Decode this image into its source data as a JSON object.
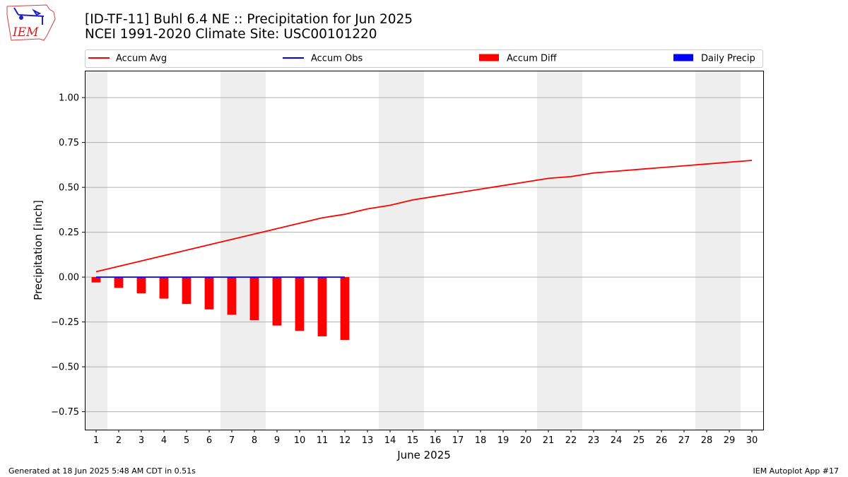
{
  "header": {
    "title_line1": "[ID-TF-11] Buhl 6.4 NE :: Precipitation for Jun 2025",
    "title_line2": "NCEI 1991-2020 Climate Site: USC00101220"
  },
  "logo": {
    "text": "IEM",
    "icon": "iem-state-map-logo"
  },
  "footer": {
    "generated": "Generated at 18 Jun 2025 5:48 AM CDT in 0.51s",
    "app": "IEM Autoplot App #17"
  },
  "colors": {
    "avg": "#ff0000",
    "obs": "#0000ff",
    "diff": "#ff0000",
    "daily": "#0000ff",
    "weekend_shade": "#eeeeee",
    "grid": "#b0b0b0"
  },
  "chart_data": {
    "type": "bar",
    "xlabel": "June 2025",
    "ylabel": "Precipitation [inch]",
    "xlim": [
      0.5,
      30.5
    ],
    "ylim": [
      -0.85,
      1.15
    ],
    "yticks": [
      -0.75,
      -0.5,
      -0.25,
      0.0,
      0.25,
      0.5,
      0.75,
      1.0
    ],
    "ytick_labels": [
      "−0.75",
      "−0.50",
      "−0.25",
      "0.00",
      "0.25",
      "0.50",
      "0.75",
      "1.00"
    ],
    "days": [
      1,
      2,
      3,
      4,
      5,
      6,
      7,
      8,
      9,
      10,
      11,
      12,
      13,
      14,
      15,
      16,
      17,
      18,
      19,
      20,
      21,
      22,
      23,
      24,
      25,
      26,
      27,
      28,
      29,
      30
    ],
    "weekend_days": [
      1,
      7,
      8,
      14,
      15,
      21,
      22,
      28,
      29
    ],
    "grid": true,
    "legend_placement": "top",
    "legend": [
      "Accum Avg",
      "Accum Obs",
      "Accum Diff",
      "Daily Precip"
    ],
    "series": [
      {
        "name": "Accum Avg",
        "kind": "line",
        "x": [
          1,
          2,
          3,
          4,
          5,
          6,
          7,
          8,
          9,
          10,
          11,
          12,
          13,
          14,
          15,
          16,
          17,
          18,
          19,
          20,
          21,
          22,
          23,
          24,
          25,
          26,
          27,
          28,
          29,
          30
        ],
        "values": [
          0.03,
          0.06,
          0.09,
          0.12,
          0.15,
          0.18,
          0.21,
          0.24,
          0.27,
          0.3,
          0.33,
          0.35,
          0.38,
          0.4,
          0.43,
          0.45,
          0.47,
          0.49,
          0.51,
          0.53,
          0.55,
          0.56,
          0.58,
          0.59,
          0.6,
          0.61,
          0.62,
          0.63,
          0.64,
          0.65
        ]
      },
      {
        "name": "Accum Obs",
        "kind": "line",
        "x": [
          1,
          2,
          3,
          4,
          5,
          6,
          7,
          8,
          9,
          10,
          11,
          12
        ],
        "values": [
          0,
          0,
          0,
          0,
          0,
          0,
          0,
          0,
          0,
          0,
          0,
          0
        ]
      },
      {
        "name": "Accum Diff",
        "kind": "bar",
        "x": [
          1,
          2,
          3,
          4,
          5,
          6,
          7,
          8,
          9,
          10,
          11,
          12
        ],
        "values": [
          -0.03,
          -0.06,
          -0.09,
          -0.12,
          -0.15,
          -0.18,
          -0.21,
          -0.24,
          -0.27,
          -0.3,
          -0.33,
          -0.35
        ]
      },
      {
        "name": "Daily Precip",
        "kind": "bar",
        "x": [
          1,
          2,
          3,
          4,
          5,
          6,
          7,
          8,
          9,
          10,
          11,
          12
        ],
        "values": [
          0,
          0,
          0,
          0,
          0,
          0,
          0,
          0,
          0,
          0,
          0,
          0
        ]
      }
    ]
  }
}
